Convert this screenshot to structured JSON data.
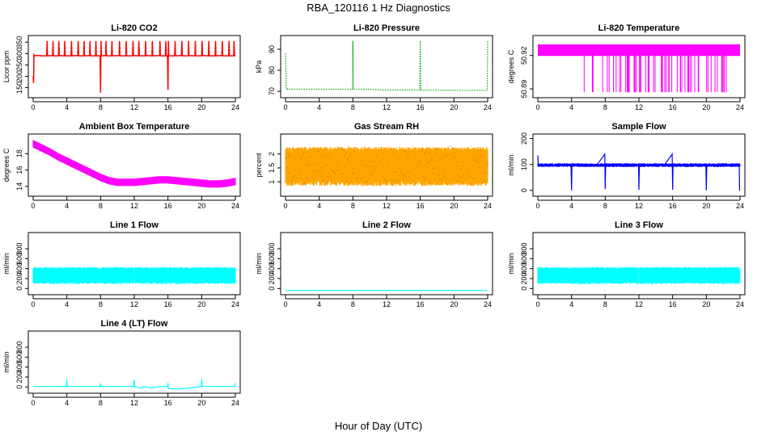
{
  "title": "RBA_120116  1 Hz Diagnostics",
  "xlabel": "Hour of Day (UTC)",
  "chart_data": [
    {
      "type": "line",
      "title": "Li-820 CO2",
      "ylabel": "Licor ppm",
      "color": "#ff0000",
      "style": "solid",
      "xlim": [
        0,
        24
      ],
      "ylim": [
        120,
        365
      ],
      "xticks": [
        0,
        4,
        8,
        12,
        16,
        20,
        24
      ],
      "yticks": [
        150,
        200,
        250,
        300,
        350
      ],
      "series": [
        {
          "x": [
            0,
            0.05,
            0.1,
            0.2,
            0.5,
            1,
            1.6,
            1.65,
            1.7,
            2.3,
            2.35,
            2.4,
            3,
            3.05,
            3.1,
            3.7,
            3.75,
            3.8,
            4.5,
            4.55,
            4.6,
            5.3,
            5.35,
            5.4,
            6,
            6.05,
            6.1,
            6.7,
            6.75,
            6.8,
            7.4,
            7.45,
            7.5,
            7.95,
            8.0,
            8.05,
            8.1,
            8.6,
            8.65,
            8.7,
            9.3,
            9.35,
            9.4,
            10.2,
            10.25,
            10.3,
            11,
            11.05,
            11.1,
            11.8,
            11.85,
            11.9,
            12.5,
            12.55,
            12.6,
            13.3,
            13.35,
            13.4,
            14.1,
            14.15,
            14.2,
            15,
            15.05,
            15.1,
            15.7,
            15.75,
            15.8,
            15.95,
            16.0,
            16.05,
            16.1,
            16.8,
            16.85,
            16.9,
            17.6,
            17.65,
            17.7,
            18.4,
            18.45,
            18.5,
            19.2,
            19.25,
            19.3,
            20,
            20.05,
            20.1,
            20.8,
            20.85,
            20.9,
            21.6,
            21.65,
            21.7,
            22.4,
            22.45,
            22.5,
            23.2,
            23.25,
            23.3,
            23.8,
            23.85,
            23.9,
            24
          ],
          "y": [
            200,
            170,
            295,
            290,
            292,
            290,
            290,
            355,
            290,
            291,
            355,
            290,
            290,
            355,
            291,
            290,
            355,
            290,
            290,
            355,
            290,
            291,
            355,
            290,
            290,
            355,
            290,
            291,
            355,
            290,
            290,
            355,
            290,
            290,
            128,
            355,
            290,
            291,
            355,
            290,
            290,
            355,
            290,
            291,
            355,
            290,
            290,
            355,
            290,
            290,
            355,
            291,
            290,
            355,
            290,
            290,
            355,
            291,
            290,
            355,
            290,
            291,
            355,
            290,
            290,
            355,
            290,
            290,
            140,
            355,
            290,
            290,
            355,
            290,
            291,
            355,
            290,
            290,
            355,
            291,
            290,
            355,
            290,
            290,
            355,
            291,
            290,
            355,
            290,
            290,
            355,
            290,
            291,
            355,
            290,
            290,
            355,
            290,
            290,
            355,
            290,
            290
          ]
        }
      ]
    },
    {
      "type": "line",
      "title": "Li-820 Pressure",
      "ylabel": "kPa",
      "color": "#00aa00",
      "style": "dotted",
      "xlim": [
        0,
        24
      ],
      "ylim": [
        68.5,
        95
      ],
      "xticks": [
        0,
        4,
        8,
        12,
        16,
        20,
        24
      ],
      "yticks": [
        70,
        80,
        90
      ],
      "series": [
        {
          "x": [
            0,
            0.05,
            0.1,
            0.2,
            2,
            4,
            6,
            7.95,
            8.0,
            8.05,
            10,
            11.5,
            12,
            14,
            15.95,
            16.0,
            16.05,
            18,
            20,
            22,
            23.95,
            24.0
          ],
          "y": [
            88,
            80,
            71,
            71,
            71,
            71,
            71,
            71,
            94,
            71,
            71,
            70.6,
            70.6,
            70.6,
            70.6,
            94,
            70.6,
            70.5,
            70.5,
            70.5,
            70.5,
            94
          ]
        }
      ]
    },
    {
      "type": "line",
      "title": "Li-820 Temperature",
      "ylabel": "degrees C",
      "color": "#ff00ff",
      "style": "solid",
      "xlim": [
        0,
        24
      ],
      "ylim": [
        50.885,
        50.935
      ],
      "xticks": [
        0,
        4,
        8,
        12,
        16,
        20,
        24
      ],
      "yticks": [
        50.89,
        50.92
      ],
      "series": [
        {
          "x": [
            0,
            24
          ],
          "y": [
            50.92,
            50.92
          ]
        }
      ]
    },
    {
      "type": "line",
      "title": "Ambient Box Temperature",
      "ylabel": "degrees C",
      "color": "#ff00ff",
      "style": "solid",
      "xlim": [
        0,
        24
      ],
      "ylim": [
        13.2,
        20
      ],
      "xticks": [
        0,
        4,
        8,
        12,
        16,
        20,
        24
      ],
      "yticks": [
        14,
        16,
        18
      ],
      "series": [
        {
          "x": [
            0,
            1,
            2,
            3,
            4,
            5,
            6,
            7,
            8,
            9,
            10,
            11,
            12,
            13,
            14,
            15,
            16,
            17,
            18,
            19,
            20,
            21,
            22,
            23,
            24
          ],
          "y": [
            19.2,
            18.7,
            18.2,
            17.6,
            17.1,
            16.6,
            16.1,
            15.6,
            15.1,
            14.7,
            14.5,
            14.5,
            14.5,
            14.6,
            14.7,
            14.8,
            14.8,
            14.7,
            14.6,
            14.5,
            14.4,
            14.3,
            14.3,
            14.4,
            14.6
          ]
        }
      ]
    },
    {
      "type": "line",
      "title": "Gas Stream RH",
      "ylabel": "percent",
      "color": "#ffa500",
      "style": "dense",
      "xlim": [
        0,
        24
      ],
      "ylim": [
        0.6,
        2.6
      ],
      "xticks": [
        0,
        4,
        8,
        12,
        16,
        20,
        24
      ],
      "yticks": [
        1.0,
        1.5,
        2.0
      ],
      "series": [
        {
          "x": [
            0,
            24
          ],
          "y": [
            0.85,
            2.25
          ]
        }
      ]
    },
    {
      "type": "line",
      "title": "Sample Flow",
      "ylabel": "ml/min",
      "color": "#0000ff",
      "style": "solid",
      "xlim": [
        0,
        24
      ],
      "ylim": [
        -10,
        205
      ],
      "xticks": [
        0,
        4,
        8,
        12,
        16,
        20,
        24
      ],
      "yticks": [
        0,
        100,
        200
      ],
      "series": [
        {
          "x": [
            0,
            0.05,
            0.1,
            1,
            2,
            3,
            3.95,
            4.0,
            4.05,
            5,
            6,
            7,
            7.95,
            8.0,
            8.05,
            9,
            10,
            11,
            11.95,
            12.0,
            12.05,
            13,
            14,
            15,
            15.95,
            16.0,
            16.05,
            17,
            18,
            19,
            19.95,
            20.0,
            20.05,
            21,
            22,
            23,
            23.9,
            23.95,
            24.0
          ],
          "y": [
            135,
            100,
            97,
            97,
            98,
            97,
            97,
            0,
            97,
            98,
            97,
            97,
            140,
            5,
            97,
            97,
            98,
            97,
            97,
            2,
            97,
            98,
            97,
            97,
            140,
            2,
            97,
            98,
            97,
            97,
            97,
            0,
            98,
            97,
            100,
            98,
            97,
            0,
            0
          ]
        }
      ]
    },
    {
      "type": "line",
      "title": "Line 1 Flow",
      "ylabel": "ml/min",
      "color": "#00ffff",
      "style": "dense",
      "xlim": [
        0,
        24
      ],
      "ylim": [
        -60,
        1060
      ],
      "xticks": [
        0,
        4,
        8,
        12,
        16,
        20,
        24
      ],
      "yticks": [
        0,
        200,
        400,
        600,
        800
      ],
      "series": [
        {
          "x": [
            0,
            24
          ],
          "y": [
            90,
            430
          ]
        }
      ]
    },
    {
      "type": "line",
      "title": "Line 2 Flow",
      "ylabel": "ml/min",
      "color": "#00ffff",
      "style": "solid",
      "xlim": [
        0,
        24
      ],
      "ylim": [
        -60,
        1060
      ],
      "xticks": [
        0,
        4,
        8,
        12,
        16,
        20,
        24
      ],
      "yticks": [
        0,
        200,
        400,
        600,
        800
      ],
      "series": [
        {
          "x": [
            0,
            24
          ],
          "y": [
            -40,
            -40
          ]
        }
      ]
    },
    {
      "type": "line",
      "title": "Line 3 Flow",
      "ylabel": "ml/min",
      "color": "#00ffff",
      "style": "dense",
      "xlim": [
        0,
        24
      ],
      "ylim": [
        -60,
        1060
      ],
      "xticks": [
        0,
        4,
        8,
        12,
        16,
        20,
        24
      ],
      "yticks": [
        0,
        200,
        400,
        600,
        800
      ],
      "series": [
        {
          "x": [
            0,
            24
          ],
          "y": [
            90,
            430
          ]
        }
      ]
    },
    {
      "type": "line",
      "title": "Line 4 (LT) Flow",
      "ylabel": "ml/min",
      "color": "#00ffff",
      "style": "solid",
      "xlim": [
        0,
        24
      ],
      "ylim": [
        -60,
        1060
      ],
      "xticks": [
        0,
        4,
        8,
        12,
        16,
        20,
        24
      ],
      "yticks": [
        0,
        200,
        400,
        600,
        800
      ],
      "series": [
        {
          "x": [
            0,
            2,
            3.95,
            4.0,
            4.05,
            6,
            7.95,
            8.0,
            8.05,
            10,
            11.95,
            12.0,
            12.05,
            12.8,
            13,
            14,
            15,
            15.95,
            16.0,
            16.05,
            17,
            18,
            19.95,
            20.0,
            20.05,
            22,
            23.95,
            24.0
          ],
          "y": [
            10,
            10,
            10,
            160,
            10,
            10,
            10,
            70,
            10,
            10,
            10,
            150,
            10,
            -30,
            10,
            -20,
            10,
            10,
            80,
            -30,
            -40,
            -30,
            10,
            160,
            10,
            10,
            10,
            80
          ]
        }
      ]
    }
  ]
}
